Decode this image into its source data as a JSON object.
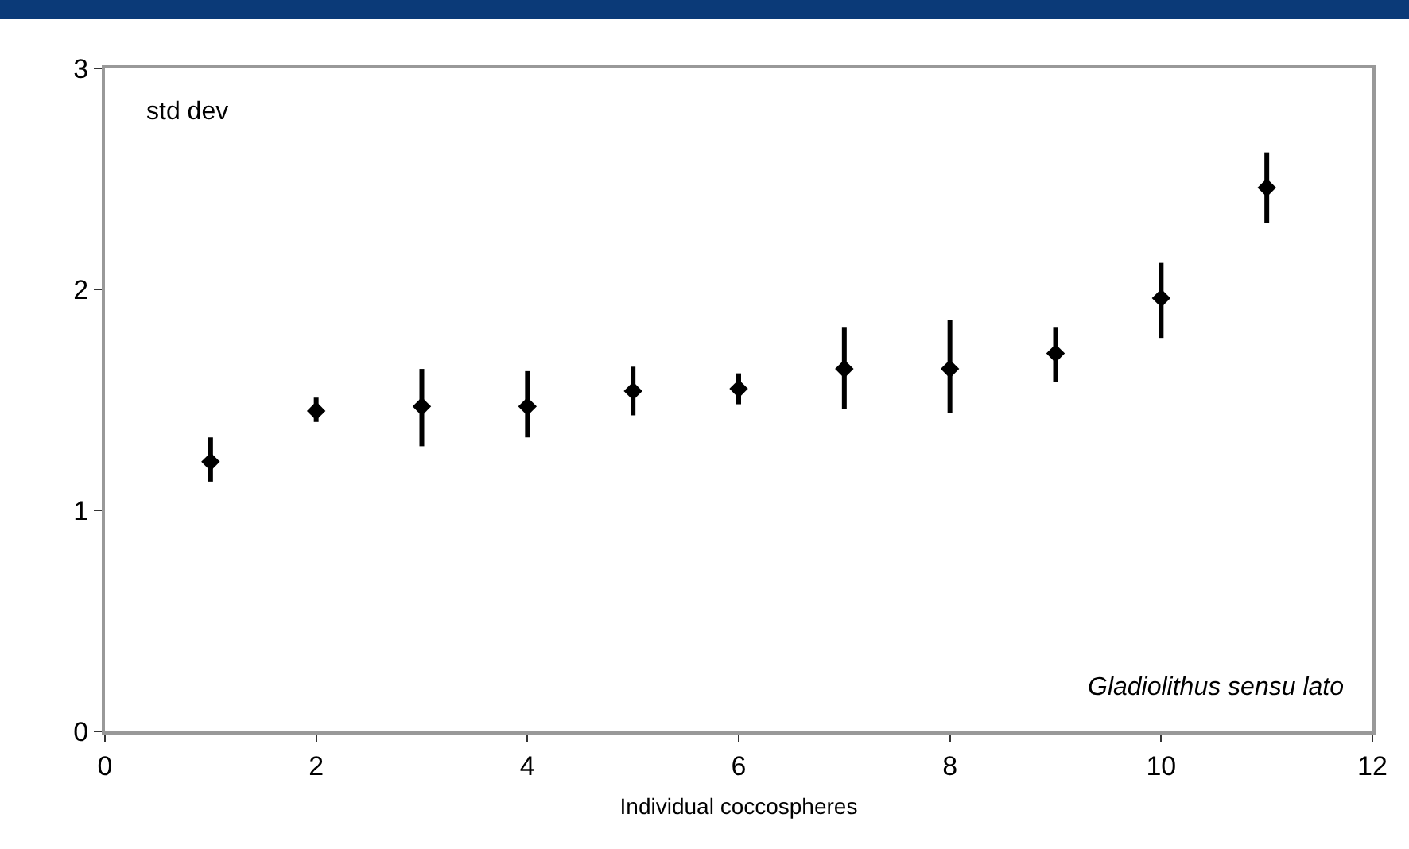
{
  "chart_data": {
    "type": "scatter",
    "xlabel": "Individual coccospheres",
    "annotations": [
      "std dev",
      "Gladiolithus sensu lato"
    ],
    "x": [
      1,
      2,
      3,
      4,
      5,
      6,
      7,
      8,
      9,
      10,
      11
    ],
    "values": [
      1.22,
      1.45,
      1.47,
      1.47,
      1.54,
      1.55,
      1.64,
      1.64,
      1.71,
      1.96,
      2.46
    ],
    "errors": [
      [
        1.13,
        1.33
      ],
      [
        1.4,
        1.51
      ],
      [
        1.29,
        1.64
      ],
      [
        1.33,
        1.63
      ],
      [
        1.43,
        1.65
      ],
      [
        1.48,
        1.62
      ],
      [
        1.46,
        1.83
      ],
      [
        1.44,
        1.86
      ],
      [
        1.58,
        1.83
      ],
      [
        1.78,
        2.12
      ],
      [
        2.3,
        2.62
      ]
    ],
    "color": "#000000",
    "marker": "diamond",
    "xlim": [
      0,
      12
    ],
    "xticks": [
      0,
      2,
      4,
      6,
      8,
      10,
      12
    ],
    "ylim": [
      0,
      3
    ],
    "yticks": [
      0,
      1,
      2,
      3
    ]
  }
}
